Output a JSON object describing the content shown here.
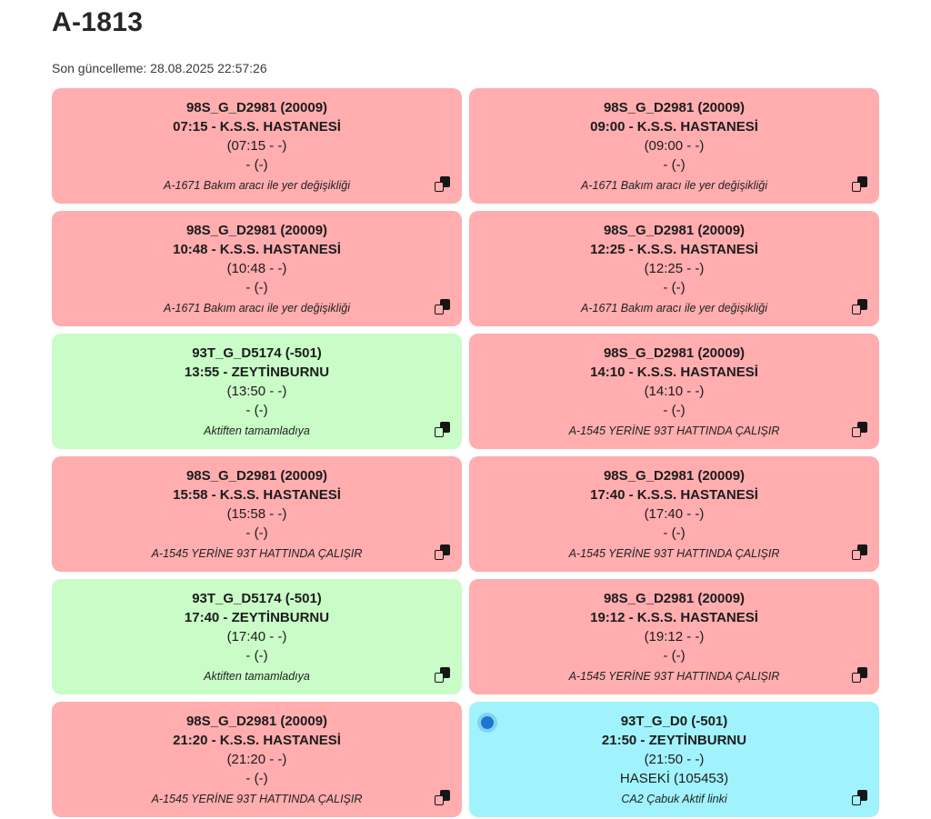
{
  "page": {
    "title": "A-1813",
    "last_update": "Son güncelleme: 28.08.2025 22:57:26"
  },
  "colors": {
    "pink": "#ffadaf",
    "green": "#c9fcc7",
    "cyan": "#a0f3fc",
    "dot": "#1b76d2",
    "text": "#1f1f1f"
  },
  "icons": {
    "copy": "copy-icon",
    "active_dot": "active-indicator-dot"
  },
  "cards": [
    {
      "variant": "pink",
      "has_dot": false,
      "line1": "98S_G_D2981 (20009)",
      "line2": "07:15 - K.S.S. HASTANESİ",
      "line3": "(07:15 - -)",
      "line4": "- (-)",
      "note": "A-1671 Bakım aracı ile yer değişikliği"
    },
    {
      "variant": "pink",
      "has_dot": false,
      "line1": "98S_G_D2981 (20009)",
      "line2": "09:00 - K.S.S. HASTANESİ",
      "line3": "(09:00 - -)",
      "line4": "- (-)",
      "note": "A-1671 Bakım aracı ile yer değişikliği"
    },
    {
      "variant": "pink",
      "has_dot": false,
      "line1": "98S_G_D2981 (20009)",
      "line2": "10:48 - K.S.S. HASTANESİ",
      "line3": "(10:48 - -)",
      "line4": "- (-)",
      "note": "A-1671 Bakım aracı ile yer değişikliği"
    },
    {
      "variant": "pink",
      "has_dot": false,
      "line1": "98S_G_D2981 (20009)",
      "line2": "12:25 - K.S.S. HASTANESİ",
      "line3": "(12:25 - -)",
      "line4": "- (-)",
      "note": "A-1671 Bakım aracı ile yer değişikliği"
    },
    {
      "variant": "green",
      "has_dot": false,
      "line1": "93T_G_D5174 (-501)",
      "line2": "13:55 - ZEYTİNBURNU",
      "line3": "(13:50 - -)",
      "line4": "- (-)",
      "note": "Aktiften tamamladıya"
    },
    {
      "variant": "pink",
      "has_dot": false,
      "line1": "98S_G_D2981 (20009)",
      "line2": "14:10 - K.S.S. HASTANESİ",
      "line3": "(14:10 - -)",
      "line4": "- (-)",
      "note": "A-1545 YERİNE 93T HATTINDA ÇALIŞIR"
    },
    {
      "variant": "pink",
      "has_dot": false,
      "line1": "98S_G_D2981 (20009)",
      "line2": "15:58 - K.S.S. HASTANESİ",
      "line3": "(15:58 - -)",
      "line4": "- (-)",
      "note": "A-1545 YERİNE 93T HATTINDA ÇALIŞIR"
    },
    {
      "variant": "pink",
      "has_dot": false,
      "line1": "98S_G_D2981 (20009)",
      "line2": "17:40 - K.S.S. HASTANESİ",
      "line3": "(17:40 - -)",
      "line4": "- (-)",
      "note": "A-1545 YERİNE 93T HATTINDA ÇALIŞIR"
    },
    {
      "variant": "green",
      "has_dot": false,
      "line1": "93T_G_D5174 (-501)",
      "line2": "17:40 - ZEYTİNBURNU",
      "line3": "(17:40 - -)",
      "line4": "- (-)",
      "note": "Aktiften tamamladıya"
    },
    {
      "variant": "pink",
      "has_dot": false,
      "line1": "98S_G_D2981 (20009)",
      "line2": "19:12 - K.S.S. HASTANESİ",
      "line3": "(19:12 - -)",
      "line4": "- (-)",
      "note": "A-1545 YERİNE 93T HATTINDA ÇALIŞIR"
    },
    {
      "variant": "pink",
      "has_dot": false,
      "line1": "98S_G_D2981 (20009)",
      "line2": "21:20 - K.S.S. HASTANESİ",
      "line3": "(21:20 - -)",
      "line4": "- (-)",
      "note": "A-1545 YERİNE 93T HATTINDA ÇALIŞIR"
    },
    {
      "variant": "cyan",
      "has_dot": true,
      "line1": "93T_G_D0 (-501)",
      "line2": "21:50 - ZEYTİNBURNU",
      "line3": "(21:50 - -)",
      "line4": "HASEKİ (105453)",
      "note": "CA2 Çabuk Aktif linki"
    }
  ]
}
